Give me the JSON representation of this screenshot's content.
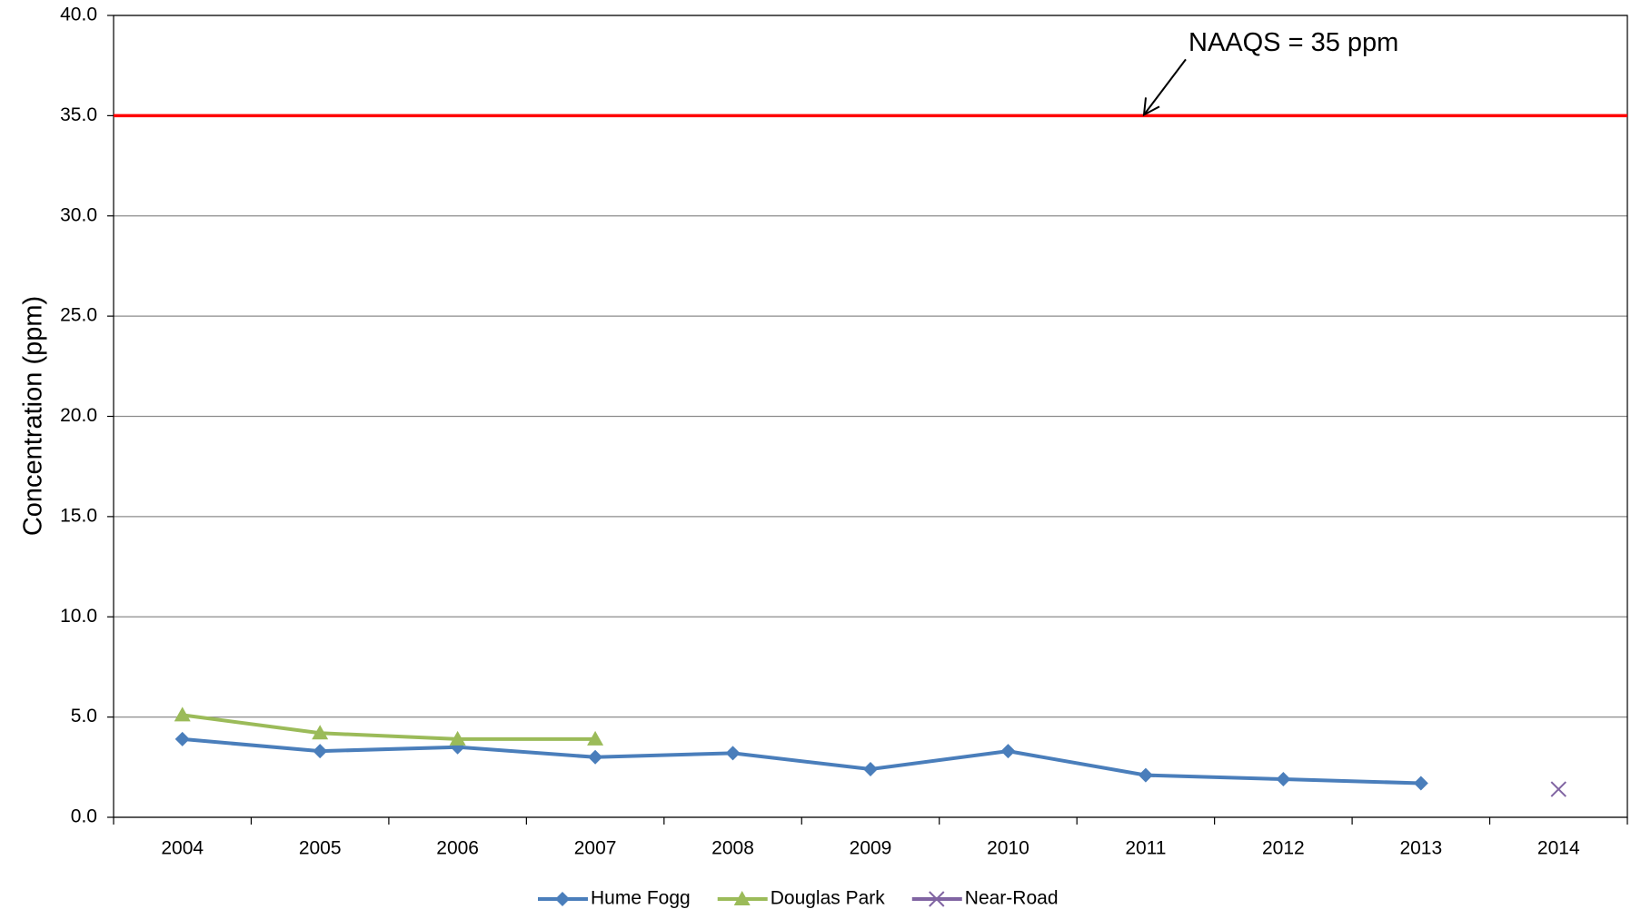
{
  "chart_data": {
    "type": "line",
    "y_label": "Concentration (ppm)",
    "categories": [
      "2004",
      "2005",
      "2006",
      "2007",
      "2008",
      "2009",
      "2010",
      "2011",
      "2012",
      "2013",
      "2014"
    ],
    "series": [
      {
        "name": "Hume Fogg",
        "color": "#4a7ebb",
        "marker": "diamond",
        "values": [
          3.9,
          3.3,
          3.5,
          3.0,
          3.2,
          2.4,
          3.3,
          2.1,
          1.9,
          1.7,
          null
        ]
      },
      {
        "name": "Douglas Park",
        "color": "#9bbb59",
        "marker": "triangle",
        "values": [
          5.1,
          4.2,
          3.9,
          3.9,
          null,
          null,
          null,
          null,
          null,
          null,
          null
        ]
      },
      {
        "name": "Near-Road",
        "color": "#8064a2",
        "marker": "x",
        "values": [
          null,
          null,
          null,
          null,
          null,
          null,
          null,
          null,
          null,
          null,
          1.4
        ]
      }
    ],
    "reference_line": {
      "value": 35,
      "label": "NAAQS = 35 ppm",
      "color": "#ff0000"
    },
    "ylim": [
      0,
      40
    ],
    "yticks": [
      {
        "value": 0,
        "label": "0.0"
      },
      {
        "value": 5,
        "label": "5.0"
      },
      {
        "value": 10,
        "label": "10.0"
      },
      {
        "value": 15,
        "label": "15.0"
      },
      {
        "value": 20,
        "label": "20.0"
      },
      {
        "value": 25,
        "label": "25.0"
      },
      {
        "value": 30,
        "label": "30.0"
      },
      {
        "value": 35,
        "label": "35.0"
      },
      {
        "value": 40,
        "label": "40.0"
      }
    ],
    "grid": true,
    "legend": "bottom"
  }
}
